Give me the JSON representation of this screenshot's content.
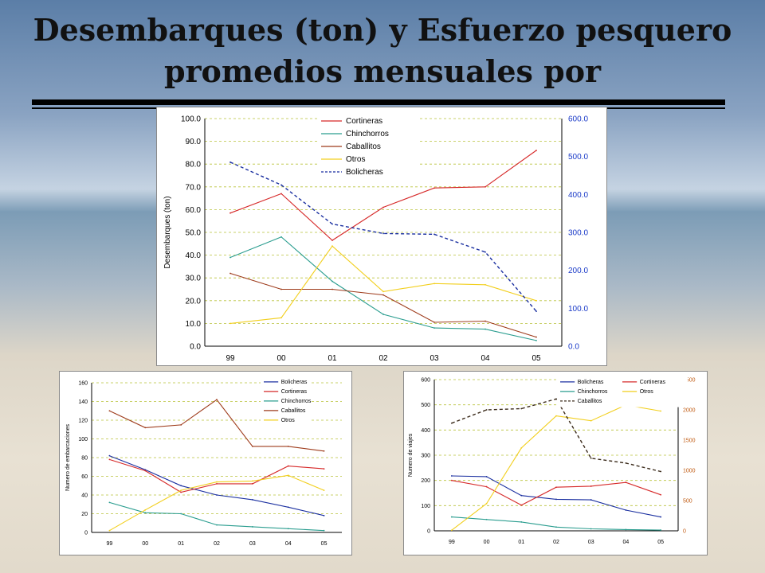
{
  "slide": {
    "title": "Desembarques (ton) y Esfuerzo pesquero promedios mensuales por"
  },
  "chart_data": [
    {
      "type": "line",
      "categories": [
        "99",
        "00",
        "01",
        "02",
        "03",
        "04",
        "05"
      ],
      "ylabel": "Desembarques (ton)",
      "ylim": [
        0,
        100
      ],
      "yticks": [
        "0.0",
        "10.0",
        "20.0",
        "30.0",
        "40.0",
        "50.0",
        "60.0",
        "70.0",
        "80.0",
        "90.0",
        "100.0"
      ],
      "y2lim": [
        0,
        600
      ],
      "y2ticks": [
        "0.0",
        "100.0",
        "200.0",
        "300.0",
        "400.0",
        "500.0",
        "600.0"
      ],
      "grid": true,
      "legend_position": "top-center",
      "series": [
        {
          "name": "Cortineras",
          "color": "#d62828",
          "axis": "left",
          "dash": false,
          "values": [
            58.5,
            67,
            46.5,
            61,
            69.5,
            70,
            86
          ]
        },
        {
          "name": "Chinchorros",
          "color": "#2a9d8f",
          "axis": "left",
          "dash": false,
          "values": [
            39,
            48,
            28.5,
            14,
            8,
            7.5,
            2.5
          ]
        },
        {
          "name": "Caballitos",
          "color": "#9e3b1b",
          "axis": "left",
          "dash": false,
          "values": [
            32,
            25,
            25,
            22.5,
            10.5,
            11,
            4
          ]
        },
        {
          "name": "Otros",
          "color": "#f2cf1d",
          "axis": "left",
          "dash": false,
          "values": [
            10,
            12.5,
            44,
            24,
            27.5,
            27,
            20
          ]
        },
        {
          "name": "Bolicheras",
          "color": "#1a2fa0",
          "axis": "right",
          "dash": true,
          "values": [
            485,
            425,
            322,
            297,
            295,
            248,
            92
          ]
        }
      ]
    },
    {
      "type": "line",
      "categories": [
        "99",
        "00",
        "01",
        "02",
        "03",
        "04",
        "05"
      ],
      "ylabel": "Numero de embarcaciones",
      "ylim": [
        0,
        160
      ],
      "yticks": [
        "0",
        "20",
        "40",
        "60",
        "80",
        "100",
        "120",
        "140",
        "160"
      ],
      "grid": true,
      "legend_position": "top-right",
      "series": [
        {
          "name": "Bolicheras",
          "color": "#1a2fa0",
          "axis": "left",
          "dash": false,
          "values": [
            82,
            67,
            50,
            40,
            35,
            27,
            18
          ]
        },
        {
          "name": "Cortineras",
          "color": "#d62828",
          "axis": "left",
          "dash": false,
          "values": [
            78,
            66,
            43,
            52,
            52,
            71,
            68
          ]
        },
        {
          "name": "Chinchorros",
          "color": "#2a9d8f",
          "axis": "left",
          "dash": false,
          "values": [
            32,
            21,
            20,
            8,
            6,
            4,
            2
          ]
        },
        {
          "name": "Caballitos",
          "color": "#9e3b1b",
          "axis": "left",
          "dash": false,
          "values": [
            130,
            112,
            115,
            142,
            92,
            92,
            87
          ]
        },
        {
          "name": "Otros",
          "color": "#f2cf1d",
          "axis": "left",
          "dash": false,
          "values": [
            2,
            24,
            45,
            54,
            55,
            61,
            45
          ]
        }
      ]
    },
    {
      "type": "line",
      "categories": [
        "99",
        "00",
        "01",
        "02",
        "03",
        "04",
        "05"
      ],
      "ylabel": "Numero de viajes",
      "ylim": [
        0,
        600
      ],
      "yticks": [
        "0",
        "100",
        "200",
        "300",
        "400",
        "500",
        "600"
      ],
      "y2lim": [
        0,
        2500
      ],
      "y2ticks": [
        "0",
        "500",
        "1000",
        "1500",
        "2000",
        "2500"
      ],
      "grid": true,
      "legend_position": "top-right",
      "series": [
        {
          "name": "Bolicheras",
          "color": "#1a2fa0",
          "axis": "left",
          "dash": false,
          "values": [
            218,
            215,
            140,
            125,
            123,
            82,
            55
          ]
        },
        {
          "name": "Cortineras",
          "color": "#d62828",
          "axis": "left",
          "dash": false,
          "values": [
            200,
            175,
            102,
            173,
            177,
            192,
            143
          ]
        },
        {
          "name": "Chinchorros",
          "color": "#2a9d8f",
          "axis": "left",
          "dash": false,
          "values": [
            55,
            45,
            35,
            15,
            8,
            5,
            3
          ]
        },
        {
          "name": "Otros",
          "color": "#f2cf1d",
          "axis": "right",
          "dash": false,
          "values": [
            10,
            450,
            1370,
            1900,
            1820,
            2080,
            1980
          ]
        },
        {
          "name": "Caballitos",
          "color": "#3a2a1a",
          "axis": "right",
          "dash": true,
          "values": [
            1780,
            2000,
            2020,
            2180,
            1200,
            1120,
            980
          ]
        }
      ]
    }
  ]
}
